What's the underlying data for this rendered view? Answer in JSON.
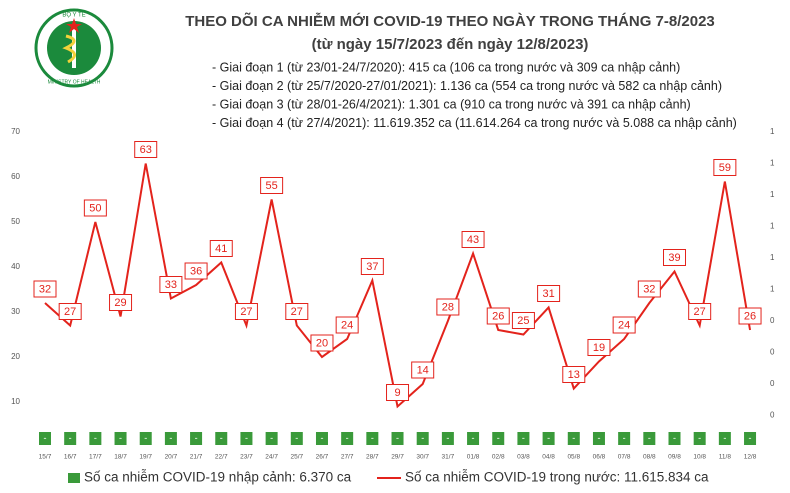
{
  "logo_text": {
    "top": "BỘ Y TẾ",
    "bottom": "MINISTRY OF HEALTH"
  },
  "chart_data": {
    "type": "line",
    "title": "THEO DÕI CA NHIỄM MỚI COVID-19 THEO NGÀY TRONG THÁNG 7-8/2023",
    "subtitle": "(từ ngày 15/7/2023 đến ngày 12/8/2023)",
    "notes": [
      "- Giai đoạn 1 (từ 23/01-24/7/2020): 415 ca (106 ca trong nước và 309 ca nhập cảnh)",
      "- Giai đoạn 2 (từ 25/7/2020-27/01/2021): 1.136 ca (554 ca trong nước và 582 ca nhập cảnh)",
      "- Giai đoạn 3 (từ 28/01-26/4/2021): 1.301 ca (910 ca trong nước và 391 ca nhập cảnh)",
      "- Giai đoạn 4 (từ 27/4/2021): 11.619.352 ca (11.614.264 ca trong nước và 5.088 ca nhập cảnh)"
    ],
    "categories": [
      "15/7",
      "16/7",
      "17/7",
      "18/7",
      "19/7",
      "20/7",
      "21/7",
      "22/7",
      "23/7",
      "24/7",
      "25/7",
      "26/7",
      "27/7",
      "28/7",
      "29/7",
      "30/7",
      "31/7",
      "01/8",
      "02/8",
      "03/8",
      "04/8",
      "05/8",
      "06/8",
      "07/8",
      "08/8",
      "09/8",
      "10/8",
      "11/8",
      "12/8"
    ],
    "series": [
      {
        "name": "Số ca nhiễm COVID-19 nhập cảnh: 6.370 ca",
        "color": "#3a9a3a",
        "axis": "y2",
        "values": [
          0,
          0,
          0,
          0,
          0,
          0,
          0,
          0,
          0,
          0,
          0,
          0,
          0,
          0,
          0,
          0,
          0,
          0,
          0,
          0,
          0,
          0,
          0,
          0,
          0,
          0,
          0,
          0,
          0
        ],
        "value_labels": [
          "-",
          "-",
          "-",
          "-",
          "-",
          "-",
          "-",
          "-",
          "-",
          "-",
          "-",
          "-",
          "-",
          "-",
          "-",
          "-",
          "-",
          "-",
          "-",
          "-",
          "-",
          "-",
          "-",
          "-",
          "-",
          "-",
          "-",
          "-",
          "-"
        ]
      },
      {
        "name": "Số ca nhiễm COVID-19 trong nước: 11.615.834 ca",
        "color": "#e3231c",
        "values": [
          32,
          27,
          50,
          29,
          63,
          33,
          36,
          41,
          27,
          55,
          27,
          20,
          24,
          37,
          9,
          14,
          28,
          43,
          26,
          25,
          31,
          13,
          19,
          24,
          32,
          39,
          27,
          59,
          26
        ]
      }
    ],
    "ylim": [
      0,
      70
    ],
    "yticks": [
      10,
      20,
      30,
      40,
      50,
      60,
      70
    ],
    "y2lim": [
      0,
      1
    ],
    "y2ticks": [
      {
        "value": 0.1,
        "label": "0"
      },
      {
        "value": 0.2,
        "label": "0"
      },
      {
        "value": 0.3,
        "label": "0"
      },
      {
        "value": 0.4,
        "label": "0"
      },
      {
        "value": 0.5,
        "label": "1"
      },
      {
        "value": 0.6,
        "label": "1"
      },
      {
        "value": 0.7,
        "label": "1"
      },
      {
        "value": 0.8,
        "label": "1"
      },
      {
        "value": 0.9,
        "label": "1"
      },
      {
        "value": 1.0,
        "label": "1"
      }
    ]
  }
}
